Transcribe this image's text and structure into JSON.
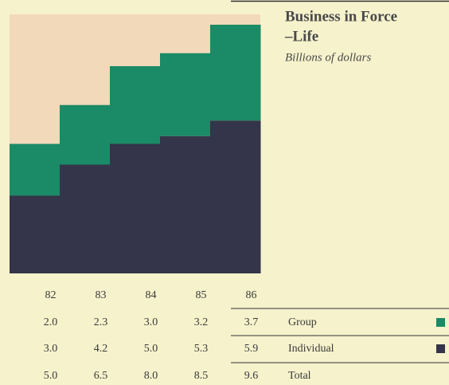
{
  "chart_data": {
    "type": "stacked-bar",
    "title": "Business in Force",
    "title_line2": "–Life",
    "subtitle": "Billions of dollars",
    "categories": [
      "82",
      "83",
      "84",
      "85",
      "86"
    ],
    "ylim": [
      0,
      10
    ],
    "series": [
      {
        "name": "Group",
        "color": "#1b8a66",
        "values": [
          2.0,
          2.3,
          3.0,
          3.2,
          3.7
        ],
        "value_labels": [
          "2.0",
          "2.3",
          "3.0",
          "3.2",
          "3.7"
        ]
      },
      {
        "name": "Individual",
        "color": "#34344a",
        "values": [
          3.0,
          4.2,
          5.0,
          5.3,
          5.9
        ],
        "value_labels": [
          "3.0",
          "4.2",
          "5.0",
          "5.3",
          "5.9"
        ]
      }
    ],
    "total": {
      "name": "Total",
      "values": [
        5.0,
        6.5,
        8.0,
        8.5,
        9.6
      ],
      "value_labels": [
        "5.0",
        "6.5",
        "8.0",
        "8.5",
        "9.6"
      ]
    },
    "background_color": "#f1d9b9"
  }
}
